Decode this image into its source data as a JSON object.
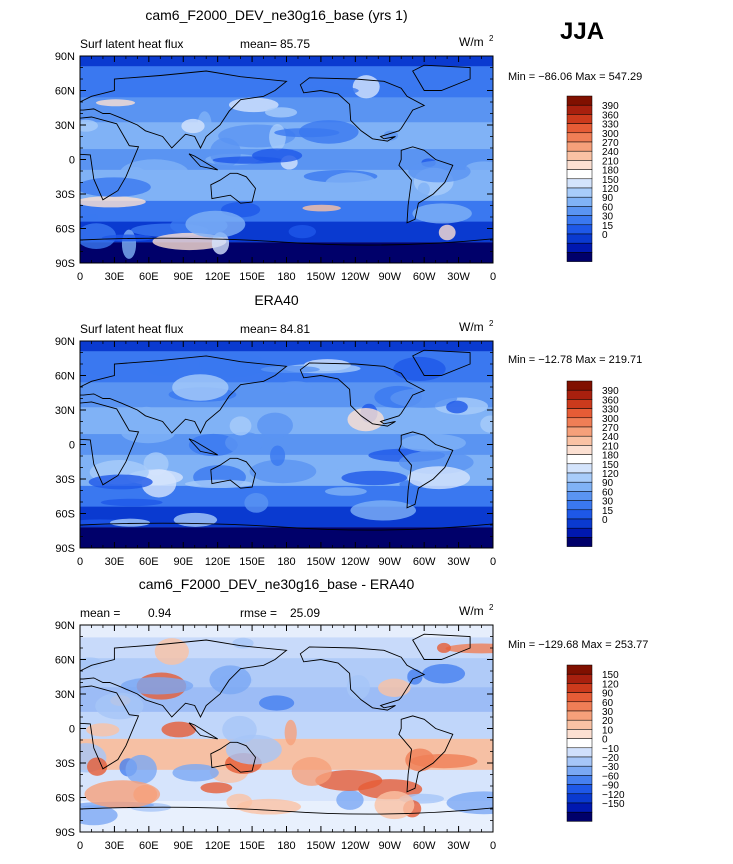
{
  "season": "JJA",
  "colors": {
    "top": [
      "#00006a",
      "#0018b0",
      "#0a3ad0",
      "#1e58e8",
      "#3a78f0",
      "#5a94f2",
      "#80b2f6",
      "#a8ccfa",
      "#d4e4fc",
      "#ffffff",
      "#fce0d2",
      "#fac2a4",
      "#f6a07a",
      "#f07e56",
      "#e65c36",
      "#cc3a1c",
      "#a8200e",
      "#801000"
    ],
    "diff": [
      "#00006a",
      "#0018b0",
      "#0a3ad0",
      "#1e58e8",
      "#4680f0",
      "#7aa8f4",
      "#a6c6f8",
      "#d0e0fc",
      "#ffffff",
      "#fce0d2",
      "#fac2a4",
      "#f6a07a",
      "#f07e56",
      "#e65c36",
      "#cc3a1c",
      "#a8200e",
      "#801000"
    ]
  },
  "chart_data": [
    {
      "type": "heatmap",
      "title": "cam6_F2000_DEV_ne30g16_base (yrs 1)",
      "variable": "Surf latent heat flux",
      "stat_label": "mean=",
      "stat_value": "85.75",
      "units": "W/m",
      "units_exp": "2",
      "min_max": "Min = −86.06 Max = 547.29",
      "xlabel": "",
      "ylabel": "",
      "x_ticks": [
        "0",
        "30E",
        "60E",
        "90E",
        "120E",
        "150E",
        "180",
        "150W",
        "120W",
        "90W",
        "60W",
        "30W",
        "0"
      ],
      "y_ticks": [
        "90N",
        "60N",
        "30N",
        "0",
        "30S",
        "60S",
        "90S"
      ],
      "colorbar_levels": [
        "390",
        "360",
        "330",
        "300",
        "270",
        "240",
        "210",
        "180",
        "150",
        "120",
        "90",
        "60",
        "30",
        "15",
        "0"
      ],
      "colorbar_palette": "top"
    },
    {
      "type": "heatmap",
      "title": "ERA40",
      "variable": "Surf latent heat flux",
      "stat_label": "mean=",
      "stat_value": "84.81",
      "units": "W/m",
      "units_exp": "2",
      "min_max": "Min = −12.78 Max = 219.71",
      "xlabel": "",
      "ylabel": "",
      "x_ticks": [
        "0",
        "30E",
        "60E",
        "90E",
        "120E",
        "150E",
        "180",
        "150W",
        "120W",
        "90W",
        "60W",
        "30W",
        "0"
      ],
      "y_ticks": [
        "90N",
        "60N",
        "30N",
        "0",
        "30S",
        "60S",
        "90S"
      ],
      "colorbar_levels": [
        "390",
        "360",
        "330",
        "300",
        "270",
        "240",
        "210",
        "180",
        "150",
        "120",
        "90",
        "60",
        "30",
        "15",
        "0"
      ],
      "colorbar_palette": "top"
    },
    {
      "type": "heatmap",
      "title": "cam6_F2000_DEV_ne30g16_base - ERA40",
      "variable": "mean =",
      "stat_label": "",
      "stat_value": "0.94",
      "rmse_label": "rmse =",
      "rmse_value": "25.09",
      "units": "W/m",
      "units_exp": "2",
      "min_max": "Min = −129.68 Max = 253.77",
      "xlabel": "",
      "ylabel": "",
      "x_ticks": [
        "0",
        "30E",
        "60E",
        "90E",
        "120E",
        "150E",
        "180",
        "150W",
        "120W",
        "90W",
        "60W",
        "30W",
        "0"
      ],
      "y_ticks": [
        "90N",
        "60N",
        "30N",
        "0",
        "30S",
        "60S",
        "90S"
      ],
      "colorbar_levels": [
        "150",
        "120",
        "90",
        "60",
        "30",
        "20",
        "10",
        "0",
        "−10",
        "−20",
        "−30",
        "−60",
        "−90",
        "−120",
        "−150"
      ],
      "colorbar_palette": "diff"
    }
  ]
}
